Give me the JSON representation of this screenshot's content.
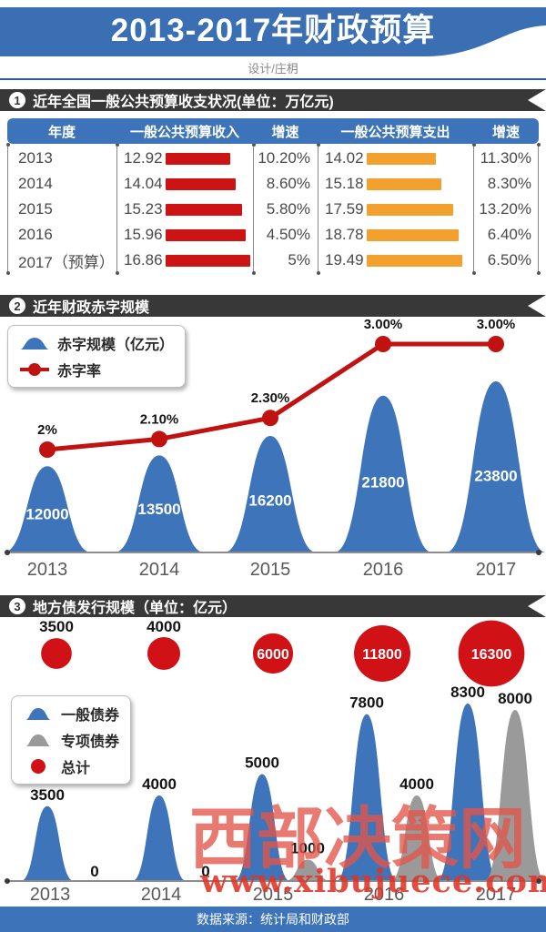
{
  "header": {
    "title": "2013-2017年财政预算",
    "credit": "设计/庄枂"
  },
  "sections": [
    {
      "number": "1",
      "title": "近年全国一般公共预算收支状况(单位：万亿元)"
    },
    {
      "number": "2",
      "title": "近年财政赤字规模"
    },
    {
      "number": "3",
      "title": "地方债发行规模（单位：亿元）"
    }
  ],
  "colors": {
    "banner_blue": "#3a6fb4",
    "table_header_blue": "#3d74b9",
    "section_bar_dark": "#383838",
    "revenue_bar_red": "#cc1414",
    "expenditure_bar_orange": "#f2a12e",
    "peak_blue": "#3e74ba",
    "special_gray": "#9a9a9a",
    "total_red": "#d01116",
    "rate_line_red": "#c11212",
    "watermark_red": "#e4564a"
  },
  "chart_data": [
    {
      "type": "table",
      "title": "近年全国一般公共预算收支状况",
      "unit": "万亿元",
      "columns": [
        "年度",
        "一般公共预算收入",
        "增速",
        "一般公共预算支出",
        "增速"
      ],
      "rows": [
        {
          "year": "2013",
          "revenue": 12.92,
          "revenue_growth": "10.20%",
          "expenditure": 14.02,
          "expenditure_growth": "11.30%"
        },
        {
          "year": "2014",
          "revenue": 14.04,
          "revenue_growth": "8.60%",
          "expenditure": 15.18,
          "expenditure_growth": "8.30%"
        },
        {
          "year": "2015",
          "revenue": 15.23,
          "revenue_growth": "5.80%",
          "expenditure": 17.59,
          "expenditure_growth": "13.20%"
        },
        {
          "year": "2016",
          "revenue": 15.96,
          "revenue_growth": "4.50%",
          "expenditure": 18.78,
          "expenditure_growth": "6.40%"
        },
        {
          "year": "2017（预算）",
          "revenue": 16.86,
          "revenue_growth": "5%",
          "expenditure": 19.49,
          "expenditure_growth": "6.50%"
        }
      ]
    },
    {
      "type": "area",
      "title": "近年财政赤字规模",
      "categories": [
        "2013",
        "2014",
        "2015",
        "2016",
        "2017"
      ],
      "legend_position": "top-left",
      "series": [
        {
          "name": "赤字规模（亿元）",
          "style": "peak",
          "color_key": "peak_blue",
          "values": [
            12000,
            13500,
            16200,
            21800,
            23800
          ]
        },
        {
          "name": "赤字率",
          "style": "line",
          "color_key": "rate_line_red",
          "values": [
            2,
            2.1,
            2.3,
            3,
            3
          ],
          "labels": [
            "2%",
            "2.10%",
            "2.30%",
            "3.00%",
            "3.00%"
          ]
        }
      ]
    },
    {
      "type": "area",
      "title": "地方债发行规模（单位：亿元）",
      "categories": [
        "2013",
        "2014",
        "2015",
        "2016",
        "2017"
      ],
      "legend_position": "left",
      "series": [
        {
          "name": "一般债券",
          "style": "peak",
          "color_key": "peak_blue",
          "values": [
            3500,
            4000,
            5000,
            7800,
            8300
          ]
        },
        {
          "name": "专项债券",
          "style": "peak",
          "color_key": "special_gray",
          "values": [
            0,
            0,
            1000,
            4000,
            8000
          ]
        },
        {
          "name": "总计",
          "style": "bubble",
          "color_key": "total_red",
          "values": [
            3500,
            4000,
            6000,
            11800,
            16300
          ]
        }
      ]
    }
  ],
  "watermark": {
    "name": "西部决策网",
    "url": "www.xibujuece.com"
  },
  "footer": {
    "text": "数据来源：统计局和财政部"
  }
}
